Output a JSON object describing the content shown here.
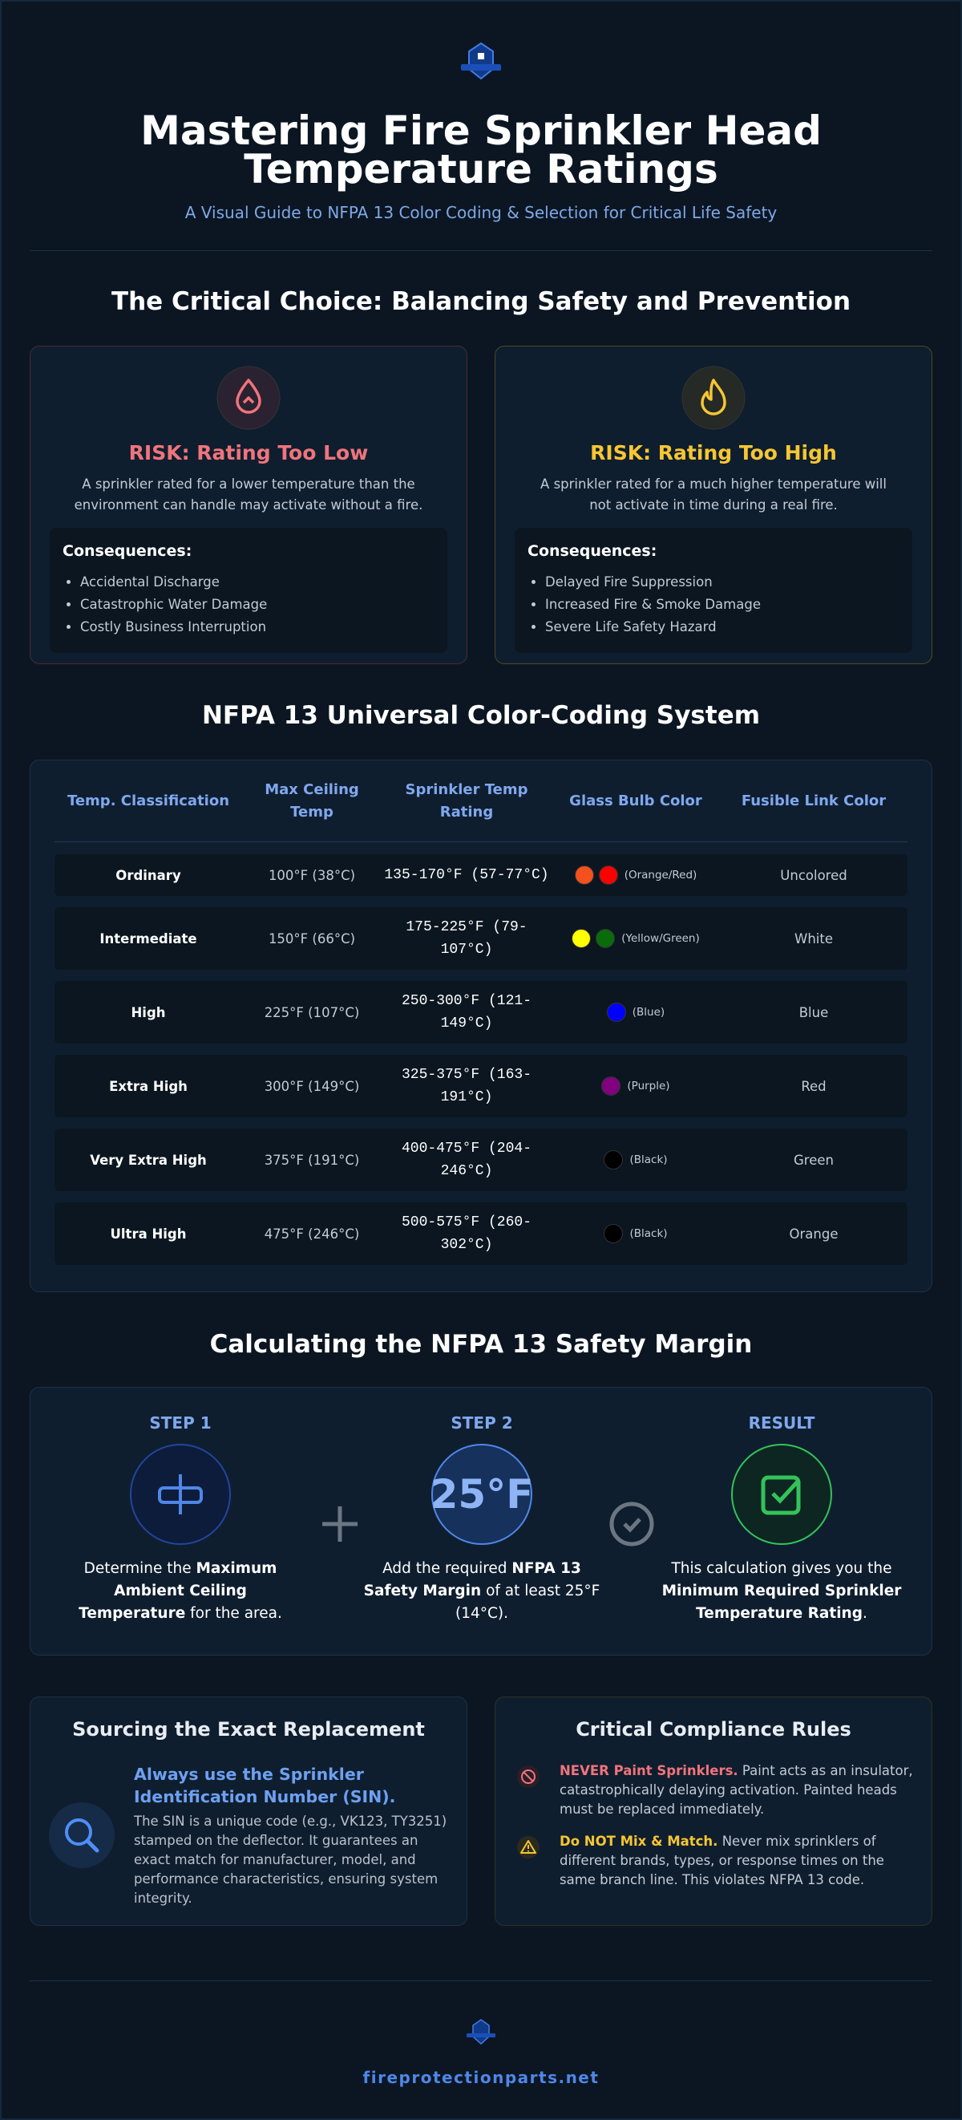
{
  "header": {
    "title_lines": [
      "Mastering Fire Sprinkler Head",
      "Temperature Ratings"
    ],
    "subtitle": "A Visual Guide to NFPA 13 Color Coding & Selection for Critical Life Safety"
  },
  "choice": {
    "heading": "The Critical Choice: Balancing Safety and Prevention",
    "cards": [
      {
        "title": "RISK: Rating Too Low",
        "color": "#f0747c",
        "text": "A sprinkler rated for a lower temperature than the environment can handle may activate without a fire.",
        "consequences_label": "Consequences:",
        "items": [
          "Accidental Discharge",
          "Catastrophic Water Damage",
          "Costly Business Interruption"
        ]
      },
      {
        "title": "RISK: Rating Too High",
        "color": "#f6c633",
        "text": "A sprinkler rated for a much higher temperature will not activate in time during a real fire.",
        "consequences_label": "Consequences:",
        "items": [
          "Delayed Fire Suppression",
          "Increased Fire & Smoke Damage",
          "Severe Life Safety Hazard"
        ]
      }
    ]
  },
  "table": {
    "heading": "NFPA 13 Universal Color-Coding System",
    "columns": [
      "Temp. Classification",
      "Max Ceiling Temp",
      "Sprinkler Temp Rating",
      "Glass Bulb Color",
      "Fusible Link Color"
    ],
    "rows": [
      {
        "classification": "Ordinary",
        "max_ceiling": "100°F (38°C)",
        "rating": "135-170°F (57-77°C)",
        "bulb_colors": [
          "#f4511e",
          "#ff0000"
        ],
        "bulb_label": "(Orange/Red)",
        "link": "Uncolored"
      },
      {
        "classification": "Intermediate",
        "max_ceiling": "150°F (66°C)",
        "rating": "175-225°F (79-107°C)",
        "bulb_colors": [
          "#ffff00",
          "#0a6b0a"
        ],
        "bulb_label": "(Yellow/Green)",
        "link": "White"
      },
      {
        "classification": "High",
        "max_ceiling": "225°F (107°C)",
        "rating": "250-300°F (121-149°C)",
        "bulb_colors": [
          "#0000ff"
        ],
        "bulb_label": "(Blue)",
        "link": "Blue"
      },
      {
        "classification": "Extra High",
        "max_ceiling": "300°F (149°C)",
        "rating": "325-375°F (163-191°C)",
        "bulb_colors": [
          "#800080"
        ],
        "bulb_label": "(Purple)",
        "link": "Red"
      },
      {
        "classification": "Very Extra High",
        "max_ceiling": "375°F (191°C)",
        "rating": "400-475°F (204-246°C)",
        "bulb_colors": [
          "#000000"
        ],
        "bulb_label": "(Black)",
        "link": "Green"
      },
      {
        "classification": "Ultra High",
        "max_ceiling": "475°F (246°C)",
        "rating": "500-575°F (260-302°C)",
        "bulb_colors": [
          "#000000"
        ],
        "bulb_label": "(Black)",
        "link": "Orange"
      }
    ]
  },
  "margin": {
    "heading": "Calculating the NFPA 13 Safety Margin",
    "step2_value": "25°F",
    "steps": [
      {
        "label": "STEP 1",
        "parts": [
          {
            "text": "Determine the "
          },
          {
            "text": "Maximum Ambient Ceiling Temperature",
            "bold": true
          },
          {
            "text": " for the area."
          }
        ]
      },
      {
        "label": "STEP 2",
        "parts": [
          {
            "text": "Add the required "
          },
          {
            "text": "NFPA 13 Safety Margin",
            "bold": true
          },
          {
            "text": " of at least 25°F (14°C)."
          }
        ]
      },
      {
        "label": "RESULT",
        "parts": [
          {
            "text": "This calculation gives you the "
          },
          {
            "text": "Minimum Required Sprinkler Temperature Rating",
            "bold": true
          },
          {
            "text": "."
          }
        ]
      }
    ]
  },
  "sourcing": {
    "title": "Sourcing the Exact Replacement",
    "subtitle": "Always use the Sprinkler Identification Number (SIN).",
    "text": "The SIN is a unique code (e.g., VK123, TY3251) stamped on the deflector. It guarantees an exact match for manufacturer, model, and performance characteristics, ensuring system integrity."
  },
  "rules": {
    "title": "Critical Compliance Rules",
    "items": [
      {
        "lead": "NEVER Paint Sprinklers.",
        "text": " Paint acts as an insulator, catastrophically delaying activation. Painted heads must be replaced immediately.",
        "color": "#f0747c"
      },
      {
        "lead": "Do NOT Mix & Match.",
        "text": " Never mix sprinklers of different brands, types, or response times on the same branch line. This violates NFPA 13 code.",
        "color": "#f6c633"
      }
    ]
  },
  "footer": {
    "site": "fireprotectionparts.net"
  }
}
